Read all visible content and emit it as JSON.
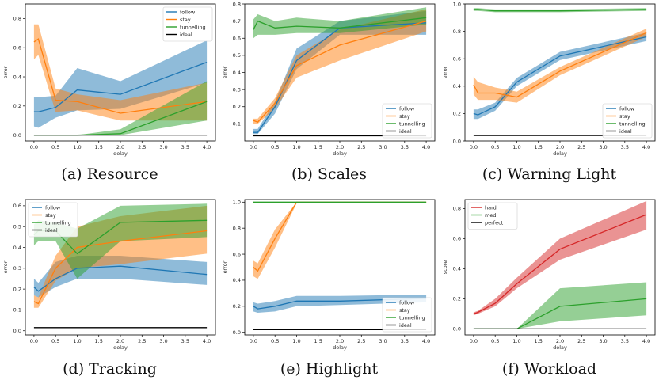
{
  "colors": {
    "follow": "#1f77b4",
    "stay": "#ff7f0e",
    "tunnelling": "#2ca02c",
    "ideal": "#000000",
    "hard": "#d62728",
    "med": "#2ca02c",
    "perfect": "#000000"
  },
  "captions": [
    "(a) Resource",
    "(b) Scales",
    "(c) Warning Light",
    "(d) Tracking",
    "(e) Highlight",
    "(f) Workload"
  ],
  "chart_data": [
    {
      "type": "line",
      "xlabel": "delay",
      "ylabel": "error",
      "xlim": [
        -0.2,
        4.2
      ],
      "ylim": [
        -0.04,
        0.9
      ],
      "xticks": [
        0.0,
        0.5,
        1.0,
        1.5,
        2.0,
        2.5,
        3.0,
        3.5,
        4.0
      ],
      "yticks": [
        0.0,
        0.2,
        0.4,
        0.6,
        0.8
      ],
      "legend_position": "top-right",
      "x": [
        0,
        0.1,
        0.5,
        1,
        2,
        4
      ],
      "series": [
        {
          "name": "follow",
          "color_key": "follow",
          "values": [
            0.16,
            0.16,
            0.19,
            0.31,
            0.28,
            0.5
          ],
          "lower": [
            0.06,
            0.05,
            0.12,
            0.17,
            0.18,
            0.36
          ],
          "upper": [
            0.26,
            0.26,
            0.27,
            0.46,
            0.37,
            0.65
          ]
        },
        {
          "name": "stay",
          "color_key": "stay",
          "values": [
            0.64,
            0.66,
            0.24,
            0.23,
            0.15,
            0.23
          ],
          "lower": [
            0.52,
            0.55,
            0.16,
            0.17,
            0.1,
            0.1
          ],
          "upper": [
            0.76,
            0.76,
            0.32,
            0.28,
            0.24,
            0.36
          ]
        },
        {
          "name": "tunnelling",
          "color_key": "tunnelling",
          "values": [
            0.0,
            0.0,
            0.0,
            0.0,
            0.01,
            0.23
          ],
          "lower": [
            0.0,
            0.0,
            0.0,
            0.0,
            0.0,
            0.1
          ],
          "upper": [
            0.0,
            0.0,
            0.0,
            0.0,
            0.04,
            0.37
          ]
        },
        {
          "name": "ideal",
          "color_key": "ideal",
          "values": [
            0.0,
            0.0,
            0.0,
            0.0,
            0.0,
            0.0
          ]
        }
      ]
    },
    {
      "type": "line",
      "xlabel": "delay",
      "ylabel": "error",
      "xlim": [
        -0.2,
        4.2
      ],
      "ylim": [
        0.0,
        0.8
      ],
      "xticks": [
        0.0,
        0.5,
        1.0,
        1.5,
        2.0,
        2.5,
        3.0,
        3.5,
        4.0
      ],
      "yticks": [
        0.1,
        0.2,
        0.3,
        0.4,
        0.5,
        0.6,
        0.7,
        0.8
      ],
      "legend_position": "bottom-right",
      "x": [
        0,
        0.1,
        0.5,
        1,
        2,
        4
      ],
      "series": [
        {
          "name": "follow",
          "color_key": "follow",
          "values": [
            0.05,
            0.05,
            0.2,
            0.47,
            0.66,
            0.69
          ],
          "lower": [
            0.04,
            0.04,
            0.16,
            0.42,
            0.62,
            0.62
          ],
          "upper": [
            0.07,
            0.07,
            0.23,
            0.54,
            0.7,
            0.76
          ]
        },
        {
          "name": "stay",
          "color_key": "stay",
          "values": [
            0.12,
            0.11,
            0.22,
            0.44,
            0.56,
            0.7
          ],
          "lower": [
            0.1,
            0.1,
            0.19,
            0.37,
            0.47,
            0.64
          ],
          "upper": [
            0.13,
            0.13,
            0.25,
            0.5,
            0.65,
            0.77
          ]
        },
        {
          "name": "tunnelling",
          "color_key": "tunnelling",
          "values": [
            0.65,
            0.7,
            0.66,
            0.67,
            0.66,
            0.72
          ],
          "lower": [
            0.6,
            0.62,
            0.62,
            0.63,
            0.63,
            0.68
          ],
          "upper": [
            0.71,
            0.74,
            0.7,
            0.72,
            0.7,
            0.78
          ]
        },
        {
          "name": "ideal",
          "color_key": "ideal",
          "values": [
            0.03,
            0.03,
            0.03,
            0.03,
            0.03,
            0.03
          ]
        }
      ]
    },
    {
      "type": "line",
      "xlabel": "delay",
      "ylabel": "error",
      "xlim": [
        -0.2,
        4.2
      ],
      "ylim": [
        0.0,
        1.0
      ],
      "xticks": [
        0.0,
        0.5,
        1.0,
        1.5,
        2.0,
        2.5,
        3.0,
        3.5,
        4.0
      ],
      "yticks": [
        0.0,
        0.2,
        0.4,
        0.6,
        0.8,
        1.0
      ],
      "legend_position": "bottom-right",
      "x": [
        0,
        0.1,
        0.5,
        1,
        2,
        4
      ],
      "series": [
        {
          "name": "follow",
          "color_key": "follow",
          "values": [
            0.2,
            0.19,
            0.25,
            0.43,
            0.62,
            0.76
          ],
          "lower": [
            0.16,
            0.16,
            0.22,
            0.4,
            0.59,
            0.73
          ],
          "upper": [
            0.23,
            0.23,
            0.28,
            0.46,
            0.65,
            0.79
          ]
        },
        {
          "name": "stay",
          "color_key": "stay",
          "values": [
            0.41,
            0.35,
            0.35,
            0.32,
            0.51,
            0.79
          ],
          "lower": [
            0.34,
            0.3,
            0.3,
            0.28,
            0.48,
            0.76
          ],
          "upper": [
            0.47,
            0.43,
            0.39,
            0.36,
            0.54,
            0.82
          ]
        },
        {
          "name": "tunnelling",
          "color_key": "tunnelling",
          "values": [
            0.96,
            0.96,
            0.95,
            0.95,
            0.95,
            0.96
          ],
          "lower": [
            0.95,
            0.95,
            0.94,
            0.94,
            0.94,
            0.95
          ],
          "upper": [
            0.97,
            0.97,
            0.96,
            0.96,
            0.96,
            0.97
          ]
        },
        {
          "name": "ideal",
          "color_key": "ideal",
          "values": [
            0.04,
            0.04,
            0.04,
            0.04,
            0.04,
            0.04
          ]
        }
      ]
    },
    {
      "type": "line",
      "xlabel": "delay",
      "ylabel": "error",
      "xlim": [
        -0.2,
        4.2
      ],
      "ylim": [
        -0.02,
        0.63
      ],
      "xticks": [
        0.0,
        0.5,
        1.0,
        1.5,
        2.0,
        2.5,
        3.0,
        3.5,
        4.0
      ],
      "yticks": [
        0.0,
        0.1,
        0.2,
        0.3,
        0.4,
        0.5,
        0.6
      ],
      "legend_position": "top-left",
      "x": [
        0,
        0.1,
        0.5,
        1,
        2,
        4
      ],
      "series": [
        {
          "name": "follow",
          "color_key": "follow",
          "values": [
            0.21,
            0.19,
            0.25,
            0.3,
            0.31,
            0.27
          ],
          "lower": [
            0.17,
            0.16,
            0.21,
            0.25,
            0.25,
            0.22
          ],
          "upper": [
            0.25,
            0.23,
            0.33,
            0.36,
            0.36,
            0.33
          ]
        },
        {
          "name": "stay",
          "color_key": "stay",
          "values": [
            0.14,
            0.13,
            0.3,
            0.4,
            0.43,
            0.48
          ],
          "lower": [
            0.11,
            0.11,
            0.24,
            0.3,
            0.32,
            0.37
          ],
          "upper": [
            0.17,
            0.16,
            0.36,
            0.5,
            0.55,
            0.6
          ]
        },
        {
          "name": "tunnelling",
          "color_key": "tunnelling",
          "values": [
            0.46,
            0.48,
            0.48,
            0.37,
            0.52,
            0.53
          ],
          "lower": [
            0.41,
            0.43,
            0.43,
            0.25,
            0.43,
            0.45
          ],
          "upper": [
            0.51,
            0.53,
            0.52,
            0.49,
            0.6,
            0.61
          ]
        },
        {
          "name": "ideal",
          "color_key": "ideal",
          "values": [
            0.015,
            0.015,
            0.015,
            0.015,
            0.015,
            0.015
          ]
        }
      ]
    },
    {
      "type": "line",
      "xlabel": "delay",
      "ylabel": "error",
      "xlim": [
        -0.2,
        4.2
      ],
      "ylim": [
        -0.02,
        1.02
      ],
      "xticks": [
        0.0,
        0.5,
        1.0,
        1.5,
        2.0,
        2.5,
        3.0,
        3.5,
        4.0
      ],
      "yticks": [
        0.0,
        0.2,
        0.4,
        0.6,
        0.8,
        1.0
      ],
      "legend_position": "bottom-right",
      "x": [
        0,
        0.1,
        0.5,
        1,
        2,
        4
      ],
      "series": [
        {
          "name": "follow",
          "color_key": "follow",
          "values": [
            0.2,
            0.18,
            0.2,
            0.24,
            0.24,
            0.26
          ],
          "lower": [
            0.16,
            0.15,
            0.16,
            0.2,
            0.21,
            0.23
          ],
          "upper": [
            0.23,
            0.22,
            0.24,
            0.28,
            0.28,
            0.29
          ]
        },
        {
          "name": "stay",
          "color_key": "stay",
          "values": [
            0.5,
            0.47,
            0.72,
            1.0,
            1.0,
            1.0
          ],
          "lower": [
            0.43,
            0.41,
            0.65,
            0.99,
            0.99,
            0.99
          ],
          "upper": [
            0.55,
            0.53,
            0.79,
            1.0,
            1.0,
            1.0
          ]
        },
        {
          "name": "tunnelling",
          "color_key": "tunnelling",
          "values": [
            1.0,
            1.0,
            1.0,
            1.0,
            1.0,
            1.0
          ],
          "lower": [
            0.99,
            0.99,
            0.99,
            0.99,
            0.99,
            0.99
          ],
          "upper": [
            1.0,
            1.0,
            1.0,
            1.0,
            1.0,
            1.0
          ]
        },
        {
          "name": "ideal",
          "color_key": "ideal",
          "values": [
            0.02,
            0.02,
            0.02,
            0.02,
            0.02,
            0.02
          ]
        }
      ]
    },
    {
      "type": "line",
      "xlabel": "delay",
      "ylabel": "score",
      "xlim": [
        -0.2,
        4.2
      ],
      "ylim": [
        -0.04,
        0.86
      ],
      "xticks": [
        0.0,
        0.5,
        1.0,
        1.5,
        2.0,
        2.5,
        3.0,
        3.5,
        4.0
      ],
      "yticks": [
        0.0,
        0.2,
        0.4,
        0.6,
        0.8
      ],
      "legend_position": "top-left",
      "x": [
        0,
        0.1,
        0.5,
        1,
        2,
        4
      ],
      "series": [
        {
          "name": "hard",
          "color_key": "hard",
          "values": [
            0.1,
            0.11,
            0.17,
            0.3,
            0.53,
            0.76
          ],
          "lower": [
            0.09,
            0.1,
            0.15,
            0.27,
            0.46,
            0.66
          ],
          "upper": [
            0.11,
            0.12,
            0.2,
            0.34,
            0.6,
            0.85
          ]
        },
        {
          "name": "med",
          "color_key": "med",
          "values": [
            0.0,
            0.0,
            0.0,
            0.0,
            0.15,
            0.2
          ],
          "lower": [
            0.0,
            0.0,
            0.0,
            0.0,
            0.05,
            0.09
          ],
          "upper": [
            0.0,
            0.0,
            0.0,
            0.0,
            0.27,
            0.31
          ]
        },
        {
          "name": "perfect",
          "color_key": "perfect",
          "values": [
            0.0,
            0.0,
            0.0,
            0.0,
            0.0,
            0.0
          ]
        }
      ]
    }
  ]
}
